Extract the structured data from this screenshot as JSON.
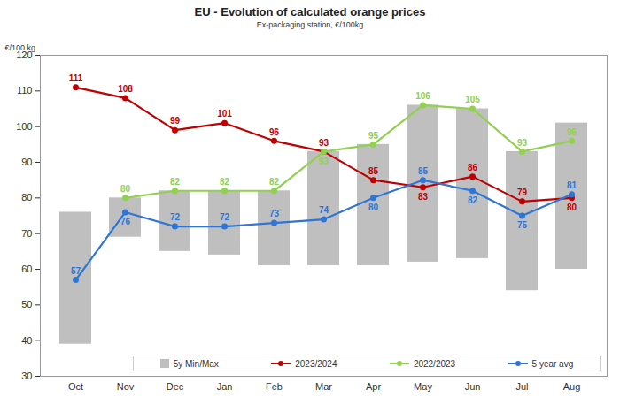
{
  "chart_data": {
    "type": "line",
    "title": "EU  -  Evolution of calculated orange prices",
    "subtitle": "Ex-packaging station, €/100kg",
    "ylabel": "€/100 kg",
    "categories": [
      "Oct",
      "Nov",
      "Dec",
      "Jan",
      "Feb",
      "Mar",
      "Apr",
      "May",
      "Jun",
      "Jul",
      "Aug"
    ],
    "series": [
      {
        "name": "5y Min/Max",
        "type": "bar",
        "color": "#bfbfbf",
        "values": [
          [
            39,
            76
          ],
          [
            69,
            80
          ],
          [
            65,
            82
          ],
          [
            64,
            82
          ],
          [
            61,
            82
          ],
          [
            61,
            93
          ],
          [
            61,
            95
          ],
          [
            62,
            106
          ],
          [
            63,
            105
          ],
          [
            54,
            93
          ],
          [
            60,
            101
          ]
        ]
      },
      {
        "name": "2023/2024",
        "type": "line",
        "color": "#c00000",
        "marker": "circle",
        "values": [
          111,
          108,
          99,
          101,
          96,
          93,
          85,
          83,
          86,
          79,
          80
        ]
      },
      {
        "name": "2022/2023",
        "type": "line",
        "color": "#92d050",
        "marker": "circle",
        "values": [
          null,
          80,
          82,
          82,
          82,
          93,
          95,
          106,
          105,
          93,
          96
        ]
      },
      {
        "name": "5 year avg",
        "type": "line",
        "color": "#2e75d6",
        "marker": "circle",
        "values": [
          57,
          76,
          72,
          72,
          73,
          74,
          80,
          85,
          82,
          75,
          81
        ]
      }
    ],
    "ylim": [
      30,
      120
    ],
    "yticks": [
      30,
      40,
      50,
      60,
      70,
      80,
      90,
      100,
      110,
      120
    ],
    "grid": false,
    "legend": "bottom",
    "data_labels": true
  }
}
